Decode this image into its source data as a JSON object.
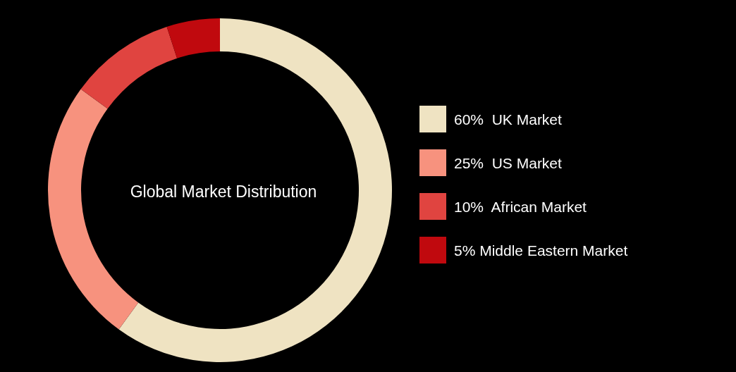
{
  "chart_data": {
    "type": "donut",
    "title": "Global Market Distribution",
    "categories": [
      "60%  UK Market",
      "25%  US Market",
      "10%  African Market",
      "5% Middle Eastern Market"
    ],
    "values": [
      60,
      25,
      10,
      5
    ],
    "colors": [
      "#efe3c2",
      "#f7927e",
      "#e04440",
      "#c0090e"
    ],
    "legend": "right"
  }
}
